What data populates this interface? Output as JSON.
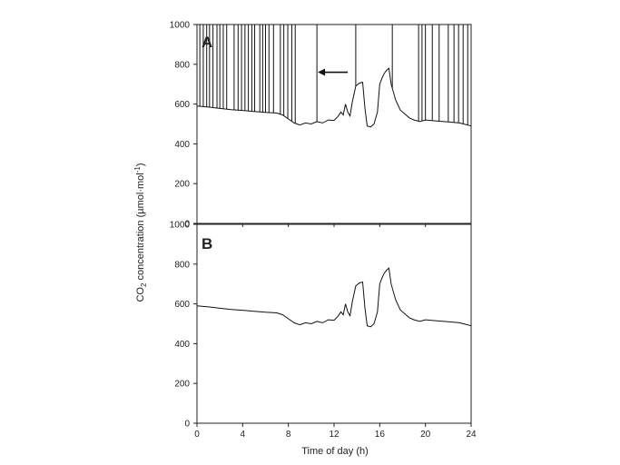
{
  "chart_data": {
    "type": "line",
    "xlabel": "Time of day (h)",
    "ylabel_prefix": "CO",
    "ylabel_subscript": "2",
    "ylabel_suffix": " concentration (µmol·mol",
    "ylabel_superscript": "-1",
    "ylabel_close": ")",
    "xlim": [
      0,
      24
    ],
    "ylim": [
      0,
      1000
    ],
    "xticks": [
      "0",
      "4",
      "8",
      "12",
      "16",
      "20",
      "24"
    ],
    "xtick_values": [
      0,
      4,
      8,
      12,
      16,
      20,
      24
    ],
    "yticks_top": [
      "0",
      "200",
      "400",
      "600",
      "800",
      "1000"
    ],
    "yticks_bottom": [
      "0",
      "200",
      "400",
      "600",
      "800",
      "1000"
    ],
    "ytick_values": [
      0,
      200,
      400,
      600,
      800,
      1000
    ],
    "panels": [
      {
        "label": "A",
        "arrow_at": {
          "x": 13.2,
          "y": 760
        },
        "spike_times": [
          0.25,
          0.55,
          0.85,
          1.1,
          1.4,
          1.75,
          2.0,
          2.3,
          2.6,
          3.25,
          3.6,
          3.9,
          4.2,
          4.5,
          4.8,
          5.05,
          5.5,
          5.75,
          6.0,
          6.3,
          6.7,
          7.3,
          7.6,
          7.95,
          8.3,
          8.6,
          10.5,
          13.9,
          17.1,
          19.4,
          19.7,
          20.0,
          20.6,
          21.2,
          22.0,
          22.5,
          22.9,
          23.3,
          23.7
        ],
        "series": [
          {
            "x": [
              0,
              1,
              2,
              3,
              4,
              5,
              6,
              7,
              7.5,
              8,
              8.5,
              9,
              9.5,
              10,
              10.5,
              11,
              11.5,
              12,
              12.3,
              12.6,
              12.8,
              13.0,
              13.2,
              13.4,
              13.6,
              13.9,
              14.2,
              14.5,
              14.7,
              14.9,
              15.2,
              15.5,
              15.8,
              16.0,
              16.2,
              16.4,
              16.6,
              16.8,
              17.0,
              17.4,
              17.8,
              18.2,
              18.6,
              19.0,
              19.5,
              20,
              21,
              22,
              23,
              24
            ],
            "y": [
              590,
              585,
              578,
              572,
              568,
              563,
              558,
              555,
              545,
              525,
              505,
              495,
              505,
              500,
              512,
              505,
              520,
              518,
              535,
              560,
              545,
              600,
              560,
              540,
              610,
              690,
              705,
              710,
              580,
              490,
              485,
              500,
              560,
              700,
              730,
              755,
              770,
              780,
              700,
              620,
              570,
              550,
              530,
              520,
              512,
              520,
              515,
              510,
              505,
              490
            ]
          }
        ]
      },
      {
        "label": "B",
        "series": [
          {
            "x": [
              0,
              1,
              2,
              3,
              4,
              5,
              6,
              7,
              7.5,
              8,
              8.5,
              9,
              9.5,
              10,
              10.5,
              11,
              11.5,
              12,
              12.3,
              12.6,
              12.8,
              13.0,
              13.2,
              13.4,
              13.6,
              13.9,
              14.2,
              14.5,
              14.7,
              14.9,
              15.2,
              15.5,
              15.8,
              16.0,
              16.2,
              16.4,
              16.6,
              16.8,
              17.0,
              17.4,
              17.8,
              18.2,
              18.6,
              19.0,
              19.5,
              20,
              21,
              22,
              23,
              24
            ],
            "y": [
              590,
              585,
              578,
              572,
              568,
              563,
              558,
              555,
              545,
              525,
              505,
              495,
              505,
              500,
              512,
              505,
              520,
              518,
              535,
              560,
              545,
              600,
              560,
              540,
              610,
              690,
              705,
              710,
              580,
              490,
              485,
              500,
              560,
              700,
              730,
              755,
              770,
              780,
              700,
              620,
              570,
              550,
              530,
              520,
              512,
              520,
              515,
              510,
              505,
              490
            ]
          }
        ]
      }
    ]
  }
}
